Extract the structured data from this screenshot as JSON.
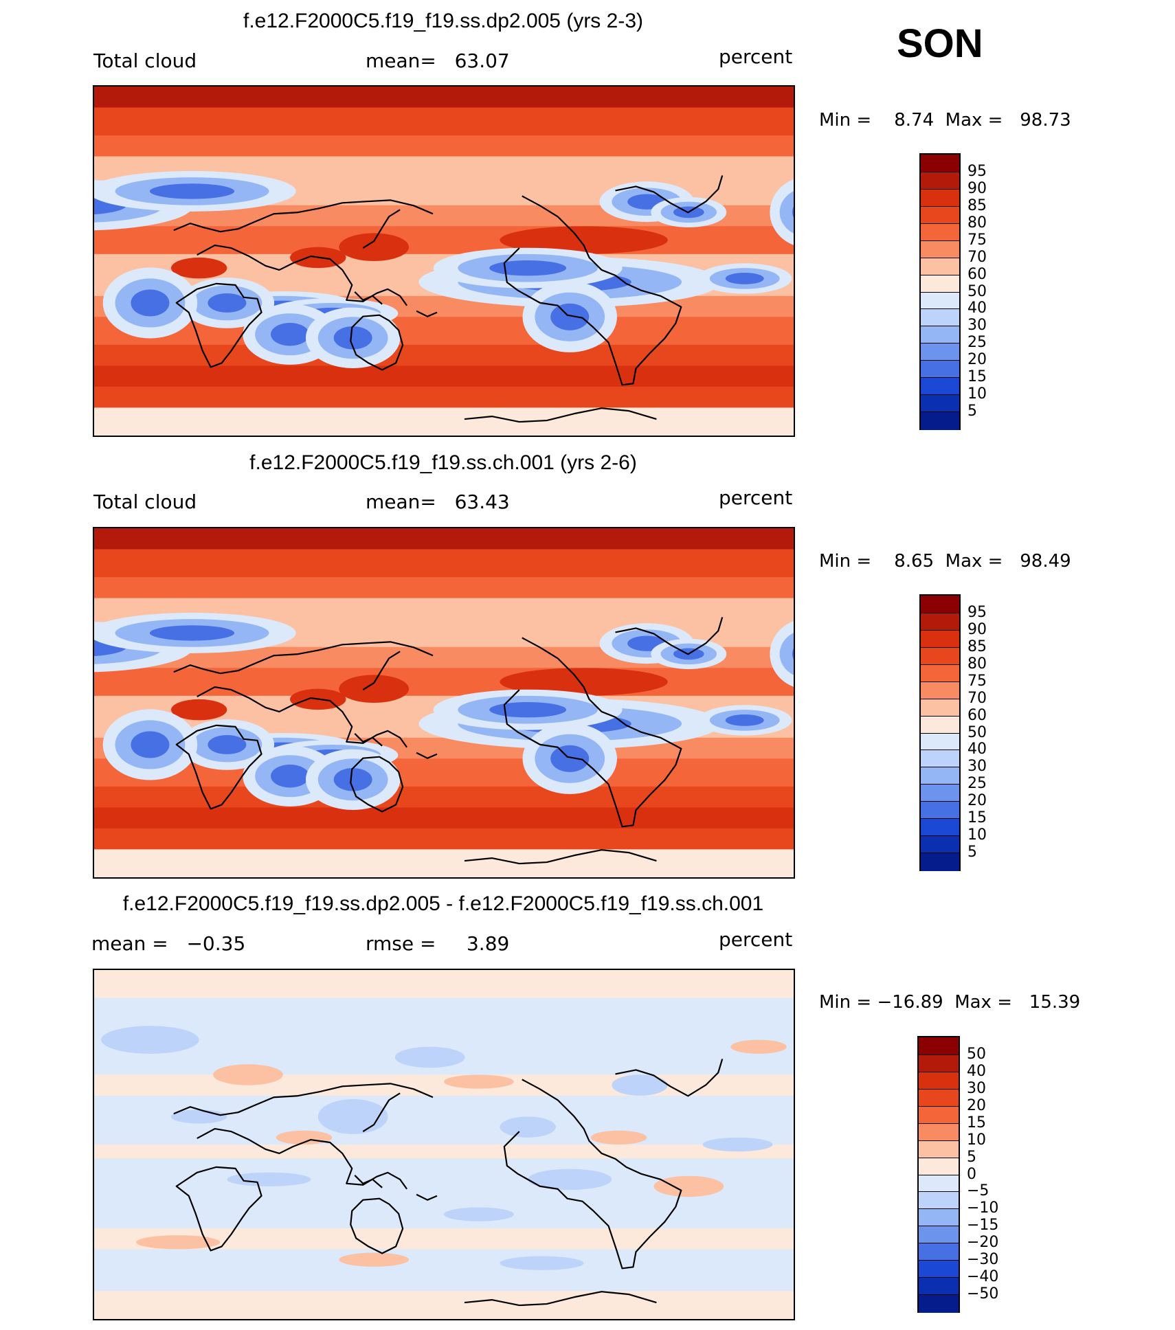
{
  "season": "SON",
  "chart_data": [
    {
      "type": "heatmap",
      "title": "f.e12.F2000C5.f19_f19.ss.dp2.005 (yrs 2-3)",
      "variable": "Total cloud",
      "stat_text": "mean=   63.07",
      "units": "percent",
      "min": 8.74,
      "max": 98.73,
      "minmax_text": "Min =    8.74  Max =   98.73",
      "levels": [
        "95",
        "90",
        "85",
        "80",
        "75",
        "70",
        "60",
        "50",
        "40",
        "30",
        "25",
        "20",
        "15",
        "10",
        "5"
      ],
      "colors": [
        "#8b0000",
        "#b31a0a",
        "#d9300f",
        "#e8461c",
        "#f4653a",
        "#f98b62",
        "#fcc1a3",
        "#fde9dc",
        "#dbe9fb",
        "#bdd3f9",
        "#94b6f4",
        "#6d94ec",
        "#4670e3",
        "#1c48d6",
        "#0a2fb0",
        "#051c8c"
      ]
    },
    {
      "type": "heatmap",
      "title": "f.e12.F2000C5.f19_f19.ss.ch.001 (yrs 2-6)",
      "variable": "Total cloud",
      "stat_text": "mean=   63.43",
      "units": "percent",
      "min": 8.65,
      "max": 98.49,
      "minmax_text": "Min =    8.65  Max =   98.49",
      "levels": [
        "95",
        "90",
        "85",
        "80",
        "75",
        "70",
        "60",
        "50",
        "40",
        "30",
        "25",
        "20",
        "15",
        "10",
        "5"
      ],
      "colors": [
        "#8b0000",
        "#b31a0a",
        "#d9300f",
        "#e8461c",
        "#f4653a",
        "#f98b62",
        "#fcc1a3",
        "#fde9dc",
        "#dbe9fb",
        "#bdd3f9",
        "#94b6f4",
        "#6d94ec",
        "#4670e3",
        "#1c48d6",
        "#0a2fb0",
        "#051c8c"
      ]
    },
    {
      "type": "heatmap",
      "title": "f.e12.F2000C5.f19_f19.ss.dp2.005 - f.e12.F2000C5.f19_f19.ss.ch.001",
      "variable": "mean =   −0.35",
      "stat_text": "rmse =     3.89",
      "units": "percent",
      "min": -16.89,
      "max": 15.39,
      "minmax_text": "Min = −16.89  Max =   15.39",
      "levels": [
        "50",
        "40",
        "30",
        "20",
        "15",
        "10",
        "5",
        "0",
        "−5",
        "−10",
        "−15",
        "−20",
        "−30",
        "−40",
        "−50"
      ],
      "colors": [
        "#8b0000",
        "#b31a0a",
        "#d9300f",
        "#e8461c",
        "#f4653a",
        "#f98b62",
        "#fcc1a3",
        "#fde9dc",
        "#dbe9fb",
        "#bdd3f9",
        "#94b6f4",
        "#6d94ec",
        "#4670e3",
        "#1c48d6",
        "#0a2fb0",
        "#051c8c"
      ]
    }
  ]
}
